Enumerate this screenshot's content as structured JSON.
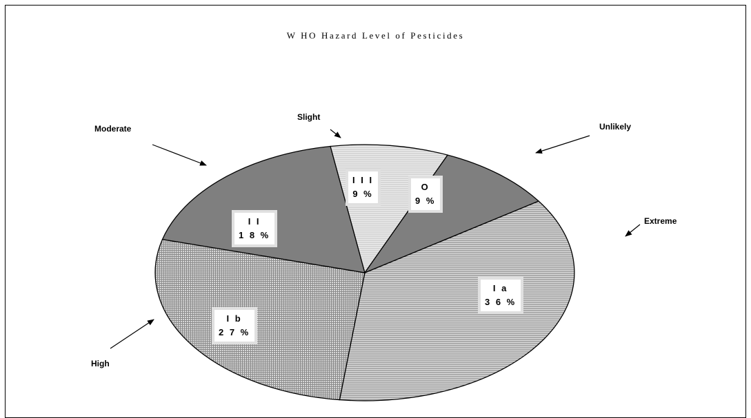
{
  "chart_data": {
    "type": "pie",
    "title": "W HO Hazard Level of Pesticides",
    "slices": [
      {
        "code": "Ia",
        "label": "I a",
        "percent_label": "3 6 %",
        "value": 36,
        "category": "Extreme",
        "fill": "hatch-h"
      },
      {
        "code": "Ib",
        "label": "I b",
        "percent_label": "2 7 %",
        "value": 27,
        "category": "High",
        "fill": "hatch-grid"
      },
      {
        "code": "II",
        "label": "I I",
        "percent_label": "1 8 %",
        "value": 18,
        "category": "Moderate",
        "fill": "#7f7f7f"
      },
      {
        "code": "III",
        "label": "I I I",
        "percent_label": "9 %",
        "value": 9,
        "category": "Slight",
        "fill": "hatch-light"
      },
      {
        "code": "O",
        "label": "O",
        "percent_label": "9 %",
        "value": 9,
        "category": "Unlikely",
        "fill": "#7f7f7f"
      }
    ],
    "callouts": {
      "extreme": "Extreme",
      "high": "High",
      "moderate": "Moderate",
      "slight": "Slight",
      "unlikely": "Unlikely"
    },
    "outline_color": "#000000"
  }
}
